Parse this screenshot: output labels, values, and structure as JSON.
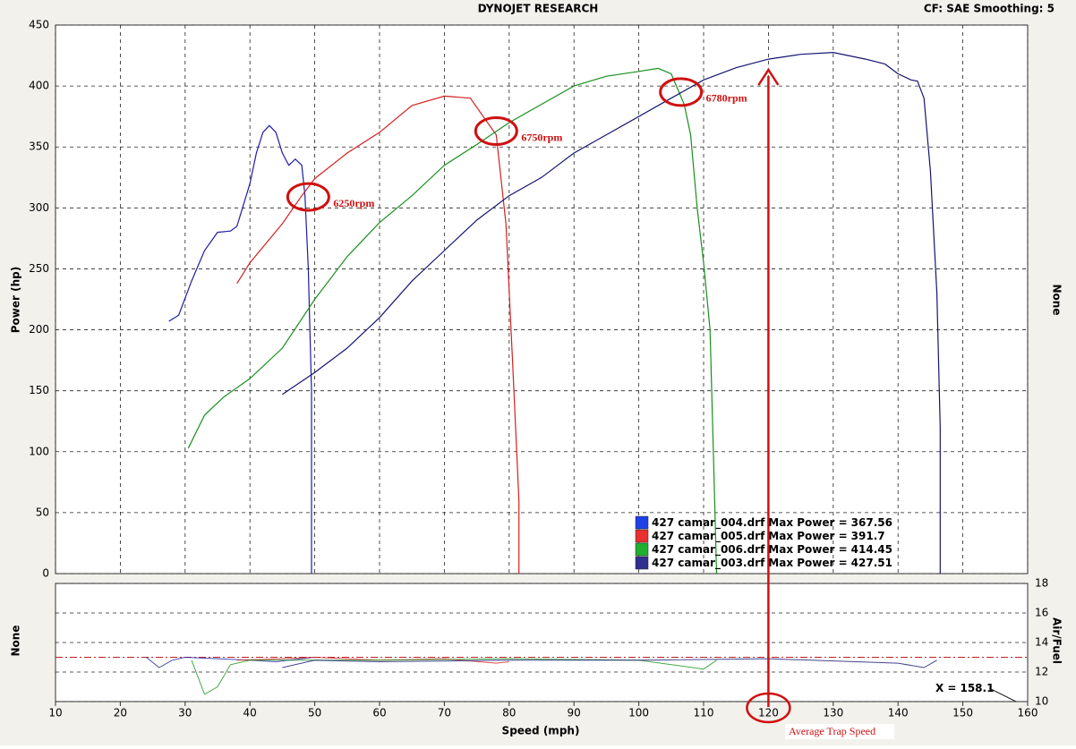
{
  "chart_data": {
    "type": "line",
    "title": "DYNOJET RESEARCH",
    "settings_label": "CF: SAE  Smoothing: 5",
    "x_label": "Speed (mph)",
    "y_label": "Power (hp)",
    "y2_label": "None",
    "lower_y_label": "None",
    "lower_y2_label": "Air/Fuel",
    "xlim": [
      10,
      160
    ],
    "xticks": [
      10,
      20,
      30,
      40,
      50,
      60,
      70,
      80,
      90,
      100,
      110,
      120,
      130,
      140,
      150,
      160
    ],
    "ylim": [
      0,
      450
    ],
    "yticks": [
      0,
      50,
      100,
      150,
      200,
      250,
      300,
      350,
      400,
      450
    ],
    "af_ylim": [
      10,
      18
    ],
    "af_yticks": [
      10,
      12,
      14,
      16,
      18
    ],
    "af_reference": 13,
    "grid": true,
    "legend_label": "Max Power =",
    "series": [
      {
        "name": "427 camar_004.drf",
        "color": "#1c1ca8",
        "swatch": "#2040e8",
        "max_power": 367.56,
        "x": [
          27.5,
          29,
          31,
          33,
          35,
          37,
          38,
          40,
          41,
          42,
          43,
          44,
          45,
          46,
          47,
          48,
          48.5,
          49,
          49.5,
          49.5
        ],
        "values": [
          207,
          212,
          240,
          265,
          280,
          281,
          285,
          320,
          345,
          362,
          367.56,
          362,
          345,
          335,
          340,
          335,
          310,
          250,
          150,
          0
        ],
        "af_x": [
          24,
          26,
          28,
          30,
          35,
          40,
          44,
          48,
          50
        ],
        "af_values": [
          13,
          12.3,
          12.8,
          13,
          12.9,
          12.8,
          12.7,
          12.9,
          13
        ]
      },
      {
        "name": "427 camar_005.drf",
        "color": "#d42020",
        "swatch": "#e83030",
        "max_power": 391.7,
        "x": [
          38,
          40,
          45,
          48,
          50,
          55,
          60,
          65,
          70,
          74,
          76,
          78,
          79.5,
          80.5,
          81.5,
          81.5
        ],
        "values": [
          238,
          255,
          287,
          310,
          324,
          345,
          362,
          384,
          391.7,
          390,
          375,
          360,
          287,
          177,
          60,
          0
        ],
        "af_x": [
          38,
          45,
          50,
          60,
          70,
          78,
          80
        ],
        "af_values": [
          12.8,
          12.9,
          13,
          12.8,
          12.9,
          12.6,
          12.7
        ]
      },
      {
        "name": "427 camar_006.drf",
        "color": "#18901c",
        "swatch": "#20b030",
        "max_power": 414.45,
        "x": [
          30.5,
          33,
          36,
          40,
          45,
          50,
          55,
          60,
          65,
          70,
          75,
          80,
          85,
          90,
          95,
          100,
          103,
          105,
          107,
          108,
          109,
          110,
          111,
          111.5,
          112
        ],
        "values": [
          103,
          130,
          145,
          160,
          185,
          225,
          260,
          288,
          310,
          335,
          352,
          370,
          385,
          400,
          408,
          412,
          414.45,
          410,
          385,
          360,
          300,
          255,
          200,
          100,
          0
        ],
        "af_x": [
          31,
          33,
          35,
          37,
          40,
          60,
          80,
          100,
          110,
          112
        ],
        "af_values": [
          12.8,
          10.5,
          11,
          12.5,
          12.8,
          12.8,
          12.9,
          12.8,
          12.2,
          12.8
        ]
      },
      {
        "name": "427 camar_003.drf",
        "color": "#141470",
        "swatch": "#303090",
        "max_power": 427.51,
        "x": [
          45,
          50,
          55,
          60,
          65,
          70,
          75,
          80,
          85,
          90,
          95,
          100,
          105,
          110,
          115,
          120,
          125,
          130,
          135,
          138,
          140,
          142,
          143,
          144,
          145,
          146,
          146.5,
          146.5
        ],
        "values": [
          147,
          165,
          185,
          210,
          240,
          265,
          290,
          310,
          325,
          345,
          360,
          375,
          390,
          405,
          415,
          422,
          426,
          427.51,
          422,
          418,
          410,
          405,
          404,
          390,
          330,
          230,
          120,
          0
        ],
        "af_x": [
          45,
          50,
          60,
          80,
          100,
          120,
          140,
          144,
          146
        ],
        "af_values": [
          12.3,
          12.8,
          12.7,
          12.8,
          12.8,
          12.9,
          12.6,
          12.3,
          12.8
        ]
      }
    ],
    "annotations": [
      {
        "text": "6250rpm",
        "x": 49,
        "y": 309
      },
      {
        "text": "6750rpm",
        "x": 78,
        "y": 363
      },
      {
        "text": "6780rpm",
        "x": 106.5,
        "y": 395
      }
    ],
    "trap_speed": {
      "text": "Average Trap Speed",
      "x": 120
    },
    "cursor": {
      "label": "X =",
      "value": 158.1
    }
  }
}
